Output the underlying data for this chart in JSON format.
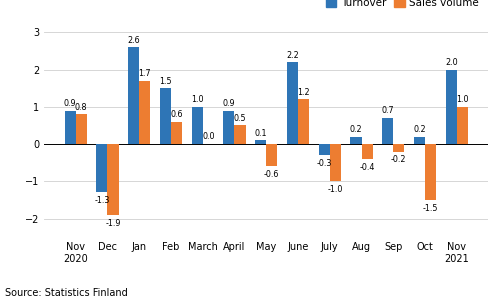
{
  "categories": [
    "Nov\n2020",
    "Dec",
    "Jan",
    "Feb",
    "March",
    "April",
    "May",
    "June",
    "July",
    "Aug",
    "Sep",
    "Oct",
    "Nov\n2021"
  ],
  "turnover": [
    0.9,
    -1.3,
    2.6,
    1.5,
    1.0,
    0.9,
    0.1,
    2.2,
    -0.3,
    0.2,
    0.7,
    0.2,
    2.0
  ],
  "sales_volume": [
    0.8,
    -1.9,
    1.7,
    0.6,
    0.0,
    0.5,
    -0.6,
    1.2,
    -1.0,
    -0.4,
    -0.2,
    -1.5,
    1.0
  ],
  "turnover_color": "#2e75b6",
  "sales_volume_color": "#ed7d31",
  "ylim": [
    -2.5,
    3.3
  ],
  "yticks": [
    -2,
    -1,
    0,
    1,
    2,
    3
  ],
  "bar_width": 0.35,
  "legend_labels": [
    "Turnover",
    "Sales volume"
  ],
  "source_text": "Source: Statistics Finland",
  "label_fontsize": 5.8,
  "axis_fontsize": 7.0,
  "source_fontsize": 7.0,
  "legend_fontsize": 7.5
}
